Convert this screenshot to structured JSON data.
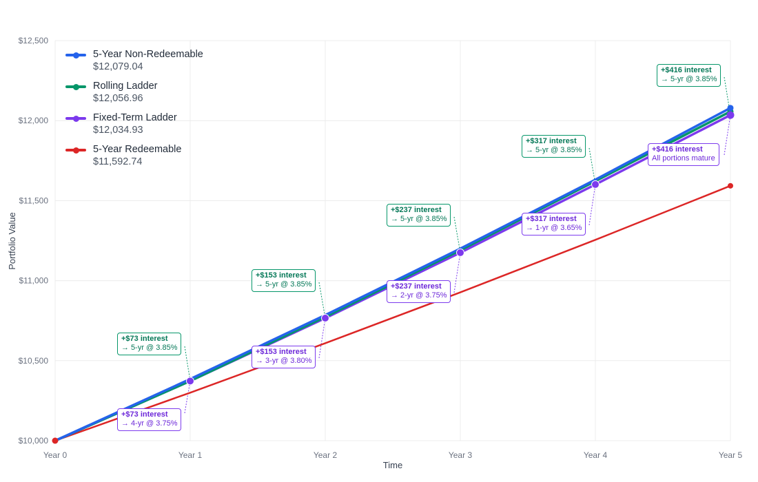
{
  "chart_data": {
    "type": "line",
    "title": "",
    "xlabel": "Time",
    "ylabel": "Portfolio Value",
    "categories": [
      "Year 0",
      "Year 1",
      "Year 2",
      "Year 3",
      "Year 4",
      "Year 5"
    ],
    "ylim": [
      10000,
      12500
    ],
    "yticks": [
      "$10,000",
      "$10,500",
      "$11,000",
      "$11,500",
      "$12,000",
      "$12,500"
    ],
    "grid": true,
    "legend_position": "top-left inside",
    "series": [
      {
        "name": "5-Year Non-Redeemable",
        "final_label": "$12,079.04",
        "color": "#2563eb",
        "values": [
          10000,
          10385,
          10784.82,
          11200.04,
          11631.24,
          12079.04
        ]
      },
      {
        "name": "Rolling Ladder",
        "final_label": "$12,056.96",
        "color": "#059669",
        "values": [
          10000,
          10373,
          10773,
          11190,
          11622,
          12056.96
        ]
      },
      {
        "name": "Fixed-Term Ladder",
        "final_label": "$12,034.93",
        "color": "#7c3aed",
        "values": [
          10000,
          10373,
          10766,
          11175,
          11601,
          12034.93
        ]
      },
      {
        "name": "5-Year Redeemable",
        "final_label": "$11,592.74",
        "color": "#dc2626",
        "values": [
          10000,
          10300,
          10609,
          10927,
          11255,
          11592.74
        ]
      }
    ],
    "annotations": [
      {
        "series": "Rolling Ladder",
        "x": "Year 1",
        "line1": "+$73 interest",
        "line2": "→ 5-yr @ 3.85%"
      },
      {
        "series": "Fixed-Term Ladder",
        "x": "Year 1",
        "line1": "+$73 interest",
        "line2": "→ 4-yr @ 3.75%"
      },
      {
        "series": "Rolling Ladder",
        "x": "Year 2",
        "line1": "+$153 interest",
        "line2": "→ 5-yr @ 3.85%"
      },
      {
        "series": "Fixed-Term Ladder",
        "x": "Year 2",
        "line1": "+$153 interest",
        "line2": "→ 3-yr @ 3.80%"
      },
      {
        "series": "Rolling Ladder",
        "x": "Year 3",
        "line1": "+$237 interest",
        "line2": "→ 5-yr @ 3.85%"
      },
      {
        "series": "Fixed-Term Ladder",
        "x": "Year 3",
        "line1": "+$237 interest",
        "line2": "→ 2-yr @ 3.75%"
      },
      {
        "series": "Rolling Ladder",
        "x": "Year 4",
        "line1": "+$317 interest",
        "line2": "→ 5-yr @ 3.85%"
      },
      {
        "series": "Fixed-Term Ladder",
        "x": "Year 4",
        "line1": "+$317 interest",
        "line2": "→ 1-yr @ 3.65%"
      },
      {
        "series": "Rolling Ladder",
        "x": "Year 5",
        "line1": "+$416 interest",
        "line2": "→ 5-yr @ 3.85%"
      },
      {
        "series": "Fixed-Term Ladder",
        "x": "Year 5",
        "line1": "+$416 interest",
        "line2": "All portions mature"
      }
    ]
  },
  "legend": [
    {
      "name": "5-Year Non-Redeemable",
      "value": "$12,079.04",
      "color": "#2563eb"
    },
    {
      "name": "Rolling Ladder",
      "value": "$12,056.96",
      "color": "#059669"
    },
    {
      "name": "Fixed-Term Ladder",
      "value": "$12,034.93",
      "color": "#7c3aed"
    },
    {
      "name": "5-Year Redeemable",
      "value": "$11,592.74",
      "color": "#dc2626"
    }
  ],
  "axes": {
    "x_title": "Time",
    "y_title": "Portfolio Value"
  }
}
